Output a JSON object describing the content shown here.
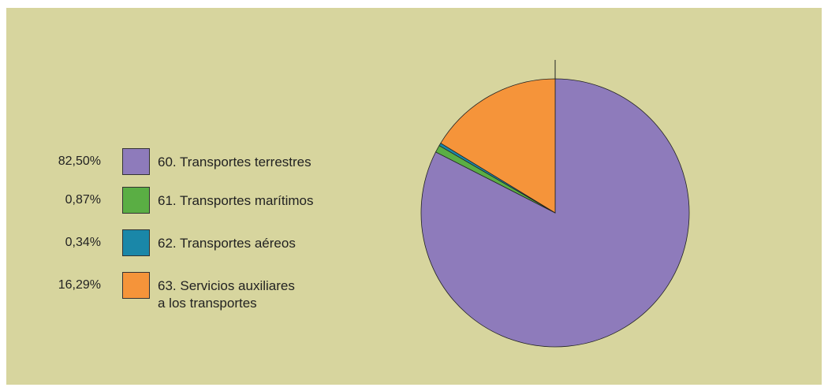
{
  "chart_data": {
    "type": "pie",
    "series": [
      {
        "name": "60. Transportes terrestres",
        "color": "#8e7bbb",
        "values": [
          82.5
        ],
        "value_labels": [
          "82,50%"
        ]
      },
      {
        "name": "61. Transportes marítimos",
        "color": "#5aae44",
        "values": [
          0.87
        ],
        "value_labels": [
          "0,87%"
        ]
      },
      {
        "name": "62. Transportes aéreos",
        "color": "#1a87a8",
        "values": [
          0.34
        ],
        "value_labels": [
          "0,34%"
        ]
      },
      {
        "name": "63. Servicios auxiliares\na los transportes",
        "color": "#f5943a",
        "values": [
          16.29
        ],
        "value_labels": [
          "16,29%"
        ]
      }
    ]
  }
}
